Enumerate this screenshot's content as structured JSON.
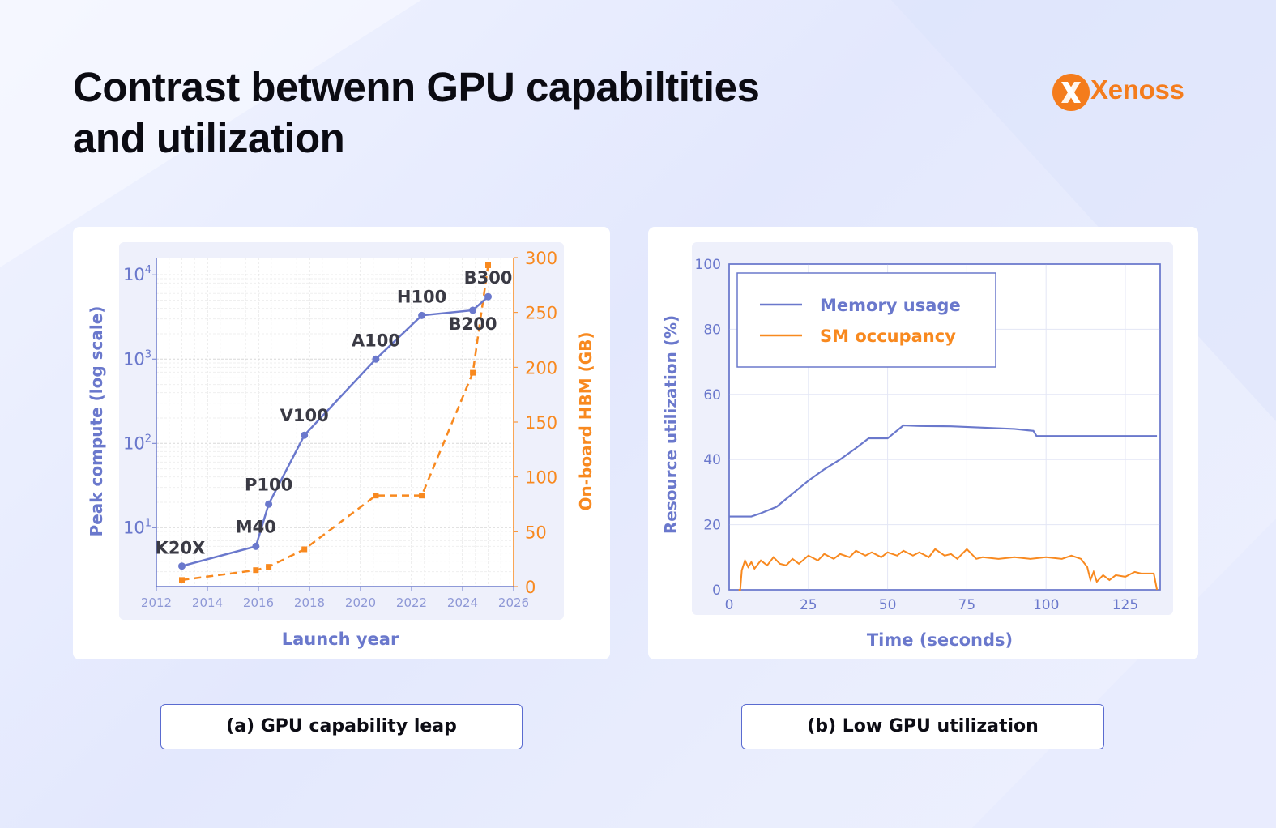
{
  "page": {
    "title_line1": "Contrast betwenn GPU capabiltities",
    "title_line2": "and utilization",
    "logo_text": "Xenoss",
    "caption_a": "(a) GPU capability leap",
    "caption_b": "(b) Low GPU utilization"
  },
  "colors": {
    "blue": "#6a78cc",
    "orange": "#f8891f",
    "brand": "#f47c1c",
    "caption_border": "#5a6bd0"
  },
  "chart_data": [
    {
      "type": "line",
      "xlabel": "Launch year",
      "ylabel_left": "Peak compute (log scale)",
      "ylabel_right": "On-board HBM (GB)",
      "xlim": [
        2012,
        2026
      ],
      "xticks": [
        "2012",
        "2014",
        "2016",
        "2018",
        "2020",
        "2022",
        "2024",
        "2026"
      ],
      "yscale_left": "log",
      "ylim_left": [
        2,
        16000
      ],
      "yticks_left": [
        {
          "base": "10",
          "exp": "1"
        },
        {
          "base": "10",
          "exp": "2"
        },
        {
          "base": "10",
          "exp": "3"
        },
        {
          "base": "10",
          "exp": "4"
        }
      ],
      "ylim_right": [
        0,
        300
      ],
      "yticks_right": [
        "0",
        "50",
        "100",
        "150",
        "200",
        "250",
        "300"
      ],
      "grid": true,
      "series": [
        {
          "axis": "left",
          "style": "solid-circle",
          "points": [
            {
              "x": 2013.0,
              "y": 3.5,
              "label": "K20X"
            },
            {
              "x": 2015.9,
              "y": 6.0,
              "label": "M40"
            },
            {
              "x": 2016.4,
              "y": 19,
              "label": "P100"
            },
            {
              "x": 2017.8,
              "y": 125,
              "label": "V100"
            },
            {
              "x": 2020.6,
              "y": 1000,
              "label": "A100"
            },
            {
              "x": 2022.4,
              "y": 3300,
              "label": "H100"
            },
            {
              "x": 2024.4,
              "y": 3800,
              "label": "B200"
            },
            {
              "x": 2025.0,
              "y": 5500,
              "label": "B300"
            }
          ]
        },
        {
          "axis": "right",
          "style": "dashed-square",
          "points": [
            {
              "x": 2013.0,
              "y": 6
            },
            {
              "x": 2015.9,
              "y": 15
            },
            {
              "x": 2016.4,
              "y": 18
            },
            {
              "x": 2017.8,
              "y": 34
            },
            {
              "x": 2020.6,
              "y": 83
            },
            {
              "x": 2022.4,
              "y": 83
            },
            {
              "x": 2024.4,
              "y": 195
            },
            {
              "x": 2025.0,
              "y": 293
            }
          ]
        }
      ]
    },
    {
      "type": "line",
      "xlabel": "Time (seconds)",
      "ylabel": "Resource utilization (%)",
      "xlim": [
        0,
        136
      ],
      "ylim": [
        0,
        100
      ],
      "xticks": [
        "0",
        "25",
        "50",
        "75",
        "100",
        "125"
      ],
      "yticks": [
        "0",
        "20",
        "40",
        "60",
        "80",
        "100"
      ],
      "grid": true,
      "legend": "top-left",
      "series": [
        {
          "name": "Memory usage",
          "points": [
            [
              0,
              22.5
            ],
            [
              7,
              22.5
            ],
            [
              10,
              23.5
            ],
            [
              15,
              25.5
            ],
            [
              20,
              29.5
            ],
            [
              25,
              33.5
            ],
            [
              30,
              37
            ],
            [
              35,
              40
            ],
            [
              40,
              43.5
            ],
            [
              44,
              46.5
            ],
            [
              50,
              46.5
            ],
            [
              55,
              50.5
            ],
            [
              60,
              50.3
            ],
            [
              70,
              50.2
            ],
            [
              80,
              49.8
            ],
            [
              90,
              49.4
            ],
            [
              96,
              48.8
            ],
            [
              97,
              47.2
            ],
            [
              110,
              47.2
            ],
            [
              125,
              47.2
            ],
            [
              135,
              47.2
            ]
          ]
        },
        {
          "name": "SM occupancy",
          "points": [
            [
              3,
              0
            ],
            [
              3.5,
              0
            ],
            [
              4,
              6
            ],
            [
              5,
              9
            ],
            [
              6,
              7
            ],
            [
              7,
              8.5
            ],
            [
              8,
              6.5
            ],
            [
              10,
              9
            ],
            [
              12,
              7.5
            ],
            [
              14,
              10
            ],
            [
              16,
              8
            ],
            [
              18,
              7.5
            ],
            [
              20,
              9.5
            ],
            [
              22,
              8
            ],
            [
              25,
              10.5
            ],
            [
              28,
              9
            ],
            [
              30,
              11
            ],
            [
              33,
              9.5
            ],
            [
              35,
              11
            ],
            [
              38,
              10
            ],
            [
              40,
              12
            ],
            [
              43,
              10.5
            ],
            [
              45,
              11.5
            ],
            [
              48,
              10
            ],
            [
              50,
              11.5
            ],
            [
              53,
              10.5
            ],
            [
              55,
              12
            ],
            [
              58,
              10.5
            ],
            [
              60,
              11.5
            ],
            [
              63,
              10
            ],
            [
              65,
              12.5
            ],
            [
              68,
              10.5
            ],
            [
              70,
              11
            ],
            [
              72,
              9.5
            ],
            [
              75,
              12.5
            ],
            [
              78,
              9.5
            ],
            [
              80,
              10
            ],
            [
              85,
              9.5
            ],
            [
              90,
              10
            ],
            [
              95,
              9.5
            ],
            [
              100,
              10
            ],
            [
              105,
              9.5
            ],
            [
              108,
              10.5
            ],
            [
              111,
              9.5
            ],
            [
              113,
              7
            ],
            [
              114,
              3
            ],
            [
              115,
              5.5
            ],
            [
              116,
              2.5
            ],
            [
              118,
              4.5
            ],
            [
              120,
              3
            ],
            [
              122,
              4.5
            ],
            [
              125,
              4
            ],
            [
              128,
              5.5
            ],
            [
              130,
              5
            ],
            [
              134,
              5
            ],
            [
              135,
              0
            ]
          ]
        }
      ]
    }
  ]
}
